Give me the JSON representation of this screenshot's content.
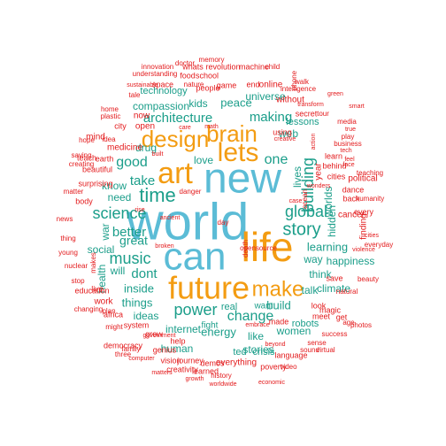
{
  "colors": {
    "red": "#e31a1c",
    "teal": "#1b9e8a",
    "orange": "#f39c12",
    "blue": "#5bbcd6",
    "black": "#222222"
  },
  "words": [
    {
      "text": "new",
      "color": "blue"
    },
    {
      "text": "world",
      "color": "blue"
    },
    {
      "text": "can",
      "color": "blue"
    },
    {
      "text": "life",
      "color": "orange"
    },
    {
      "text": "future",
      "color": "orange"
    },
    {
      "text": "art",
      "color": "orange"
    },
    {
      "text": "lets",
      "color": "orange"
    },
    {
      "text": "brain",
      "color": "orange"
    },
    {
      "text": "design",
      "color": "orange"
    },
    {
      "text": "make",
      "color": "orange"
    },
    {
      "text": "time",
      "color": "teal"
    },
    {
      "text": "science",
      "color": "teal"
    },
    {
      "text": "music",
      "color": "teal"
    },
    {
      "text": "power",
      "color": "teal"
    },
    {
      "text": "story",
      "color": "teal"
    },
    {
      "text": "global",
      "color": "teal"
    },
    {
      "text": "building",
      "color": "teal"
    },
    {
      "text": "good",
      "color": "teal"
    },
    {
      "text": "one",
      "color": "teal"
    },
    {
      "text": "change",
      "color": "teal"
    },
    {
      "text": "making",
      "color": "teal"
    },
    {
      "text": "architecture",
      "color": "teal"
    },
    {
      "text": "better",
      "color": "teal"
    },
    {
      "text": "dont",
      "color": "teal"
    },
    {
      "text": "take",
      "color": "teal"
    },
    {
      "text": "great",
      "color": "teal"
    },
    {
      "text": "inside",
      "color": "teal"
    },
    {
      "text": "things",
      "color": "teal"
    },
    {
      "text": "learning",
      "color": "teal"
    },
    {
      "text": "happiness",
      "color": "teal"
    },
    {
      "text": "build",
      "color": "teal"
    },
    {
      "text": "think",
      "color": "teal"
    },
    {
      "text": "talk",
      "color": "teal"
    },
    {
      "text": "hidden",
      "color": "teal"
    },
    {
      "text": "way",
      "color": "teal"
    },
    {
      "text": "lives",
      "color": "teal"
    },
    {
      "text": "web",
      "color": "teal"
    },
    {
      "text": "peace",
      "color": "teal"
    },
    {
      "text": "kids",
      "color": "teal"
    },
    {
      "text": "universe",
      "color": "teal"
    },
    {
      "text": "compassion",
      "color": "teal"
    },
    {
      "text": "technology",
      "color": "teal"
    },
    {
      "text": "love",
      "color": "teal"
    },
    {
      "text": "drug",
      "color": "teal"
    },
    {
      "text": "energy",
      "color": "teal"
    },
    {
      "text": "internet",
      "color": "teal"
    },
    {
      "text": "ideas",
      "color": "teal"
    },
    {
      "text": "like",
      "color": "teal"
    },
    {
      "text": "stories",
      "color": "teal"
    },
    {
      "text": "women",
      "color": "teal"
    },
    {
      "text": "robots",
      "color": "teal"
    },
    {
      "text": "climate",
      "color": "teal"
    },
    {
      "text": "social",
      "color": "teal"
    },
    {
      "text": "need",
      "color": "teal"
    },
    {
      "text": "know",
      "color": "teal"
    },
    {
      "text": "will",
      "color": "teal"
    },
    {
      "text": "war",
      "color": "teal"
    },
    {
      "text": "lessons",
      "color": "teal"
    },
    {
      "text": "worlds",
      "color": "teal"
    },
    {
      "text": "human",
      "color": "teal"
    },
    {
      "text": "real",
      "color": "teal"
    },
    {
      "text": "fight",
      "color": "teal"
    },
    {
      "text": "ted",
      "color": "teal"
    },
    {
      "text": "crisis",
      "color": "teal"
    },
    {
      "text": "want",
      "color": "teal"
    },
    {
      "text": "health",
      "color": "teal"
    },
    {
      "text": "online",
      "color": "red"
    },
    {
      "text": "without",
      "color": "red"
    },
    {
      "text": "secret",
      "color": "red"
    },
    {
      "text": "cities",
      "color": "red"
    },
    {
      "text": "learn",
      "color": "red"
    },
    {
      "text": "behind",
      "color": "red"
    },
    {
      "text": "dance",
      "color": "red"
    },
    {
      "text": "cancer",
      "color": "red"
    },
    {
      "text": "back",
      "color": "red"
    },
    {
      "text": "ocean",
      "color": "red"
    },
    {
      "text": "save",
      "color": "red"
    },
    {
      "text": "look",
      "color": "red"
    },
    {
      "text": "magic",
      "color": "red"
    },
    {
      "text": "get",
      "color": "red"
    },
    {
      "text": "meet",
      "color": "red"
    },
    {
      "text": "made",
      "color": "red"
    },
    {
      "text": "language",
      "color": "red"
    },
    {
      "text": "video",
      "color": "red"
    },
    {
      "text": "everything",
      "color": "red"
    },
    {
      "text": "poverty",
      "color": "red"
    },
    {
      "text": "demos",
      "color": "red"
    },
    {
      "text": "learned",
      "color": "red"
    },
    {
      "text": "history",
      "color": "red"
    },
    {
      "text": "creativity",
      "color": "red"
    },
    {
      "text": "journey",
      "color": "red"
    },
    {
      "text": "help",
      "color": "red"
    },
    {
      "text": "genius",
      "color": "red"
    },
    {
      "text": "vision",
      "color": "red"
    },
    {
      "text": "grow",
      "color": "red"
    },
    {
      "text": "democracy",
      "color": "red"
    },
    {
      "text": "africa",
      "color": "red"
    },
    {
      "text": "system",
      "color": "red"
    },
    {
      "text": "work",
      "color": "red"
    },
    {
      "text": "education",
      "color": "red"
    },
    {
      "text": "makes",
      "color": "red"
    },
    {
      "text": "live",
      "color": "red"
    },
    {
      "text": "teach",
      "color": "red"
    },
    {
      "text": "surprising",
      "color": "red"
    },
    {
      "text": "mind",
      "color": "red"
    },
    {
      "text": "beautiful",
      "color": "red"
    },
    {
      "text": "earth",
      "color": "red"
    },
    {
      "text": "body",
      "color": "red"
    },
    {
      "text": "medicine",
      "color": "red"
    },
    {
      "text": "now",
      "color": "red"
    },
    {
      "text": "city",
      "color": "red"
    },
    {
      "text": "open",
      "color": "red"
    },
    {
      "text": "end",
      "color": "red"
    },
    {
      "text": "people",
      "color": "red"
    },
    {
      "text": "school",
      "color": "red"
    },
    {
      "text": "food",
      "color": "red"
    },
    {
      "text": "whats",
      "color": "red"
    },
    {
      "text": "revolution",
      "color": "red"
    },
    {
      "text": "machine",
      "color": "red"
    },
    {
      "text": "game",
      "color": "red"
    },
    {
      "text": "child",
      "color": "red"
    },
    {
      "text": "understanding",
      "color": "red"
    },
    {
      "text": "space",
      "color": "red"
    },
    {
      "text": "nature",
      "color": "red"
    },
    {
      "text": "doctor",
      "color": "red"
    },
    {
      "text": "memory",
      "color": "red"
    },
    {
      "text": "innovation",
      "color": "red"
    },
    {
      "text": "walk",
      "color": "red"
    },
    {
      "text": "intelligence",
      "color": "red"
    },
    {
      "text": "phone",
      "color": "red"
    },
    {
      "text": "using",
      "color": "red"
    },
    {
      "text": "year",
      "color": "red"
    },
    {
      "text": "play",
      "color": "red"
    },
    {
      "text": "business",
      "color": "red"
    },
    {
      "text": "media",
      "color": "red"
    },
    {
      "text": "political",
      "color": "red"
    },
    {
      "text": "every",
      "color": "red"
    },
    {
      "text": "finding",
      "color": "red"
    },
    {
      "text": "beauty",
      "color": "red"
    },
    {
      "text": "natural",
      "color": "red"
    },
    {
      "text": "sense",
      "color": "red"
    },
    {
      "text": "sound",
      "color": "red"
    },
    {
      "text": "success",
      "color": "red"
    },
    {
      "text": "age",
      "color": "red"
    },
    {
      "text": "virtual",
      "color": "red"
    },
    {
      "text": "photos",
      "color": "red"
    },
    {
      "text": "everyday",
      "color": "red"
    },
    {
      "text": "teaching",
      "color": "red"
    },
    {
      "text": "humanity",
      "color": "red"
    },
    {
      "text": "home",
      "color": "red"
    },
    {
      "text": "plastic",
      "color": "red"
    },
    {
      "text": "hope",
      "color": "red"
    },
    {
      "text": "saving",
      "color": "red"
    },
    {
      "text": "creating",
      "color": "red"
    },
    {
      "text": "matter",
      "color": "red"
    },
    {
      "text": "news",
      "color": "red"
    },
    {
      "text": "thing",
      "color": "red"
    },
    {
      "text": "young",
      "color": "red"
    },
    {
      "text": "nuclear",
      "color": "red"
    },
    {
      "text": "stop",
      "color": "red"
    },
    {
      "text": "changing",
      "color": "red"
    },
    {
      "text": "plan",
      "color": "red"
    },
    {
      "text": "might",
      "color": "red"
    },
    {
      "text": "three",
      "color": "red"
    },
    {
      "text": "government",
      "color": "red"
    },
    {
      "text": "family",
      "color": "red"
    },
    {
      "text": "computer",
      "color": "red"
    },
    {
      "text": "matters",
      "color": "red"
    },
    {
      "text": "growth",
      "color": "red"
    },
    {
      "text": "worldwide",
      "color": "red"
    },
    {
      "text": "economic",
      "color": "red"
    },
    {
      "text": "embrace",
      "color": "red"
    },
    {
      "text": "opensource",
      "color": "red"
    },
    {
      "text": "death",
      "color": "red"
    },
    {
      "text": "broken",
      "color": "red"
    },
    {
      "text": "ancient",
      "color": "red"
    },
    {
      "text": "rise",
      "color": "red"
    },
    {
      "text": "idea",
      "color": "red"
    },
    {
      "text": "care",
      "color": "red"
    },
    {
      "text": "math",
      "color": "red"
    },
    {
      "text": "tour",
      "color": "red"
    },
    {
      "text": "face",
      "color": "red"
    },
    {
      "text": "smart",
      "color": "red"
    },
    {
      "text": "transform",
      "color": "red"
    },
    {
      "text": "green",
      "color": "red"
    },
    {
      "text": "sustainable",
      "color": "red"
    },
    {
      "text": "tale",
      "color": "red"
    },
    {
      "text": "violence",
      "color": "red"
    },
    {
      "text": "beyond",
      "color": "red"
    },
    {
      "text": "creative",
      "color": "red"
    },
    {
      "text": "action",
      "color": "red"
    },
    {
      "text": "case",
      "color": "red"
    },
    {
      "text": "feel",
      "color": "red"
    },
    {
      "text": "true",
      "color": "red"
    },
    {
      "text": "wonders",
      "color": "red"
    },
    {
      "text": "built",
      "color": "red"
    },
    {
      "text": "tech",
      "color": "red"
    },
    {
      "text": "cities",
      "color": "red"
    },
    {
      "text": "danger",
      "color": "red"
    },
    {
      "text": "day",
      "color": "red"
    }
  ]
}
